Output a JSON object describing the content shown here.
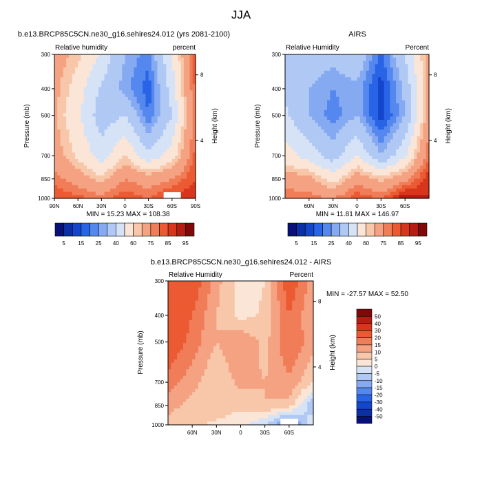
{
  "figure": {
    "title": "JJA"
  },
  "colors": {
    "palette": [
      "#08107a",
      "#0a2fa6",
      "#1446cc",
      "#2a64e6",
      "#5488ee",
      "#86aaf2",
      "#b0c8f4",
      "#d6e3f7",
      "#fbe5d6",
      "#f8c6a8",
      "#f5a283",
      "#f07d58",
      "#ec5a33",
      "#d8361c",
      "#b51c12",
      "#800808"
    ]
  },
  "panels": [
    {
      "id": "model",
      "title": "b.e13.BRCP85C5CN.ne30_g16.sehires24.012 (yrs 2081-2100)",
      "left_label": "Relative humidity",
      "right_label": "percent",
      "ylabel": "Pressure (mb)",
      "ylabel_right": "Height (km)",
      "ytick_labels": [
        "300",
        "400",
        "500",
        "700",
        "850",
        "1000"
      ],
      "height_tick_labels": [
        "8",
        "4"
      ],
      "xtick_labels": [
        "90N",
        "60N",
        "30N",
        "0",
        "30S",
        "60S",
        "90S"
      ],
      "min_max_text": "MIN =  15.23   MAX = 108.38"
    },
    {
      "id": "airs",
      "title": "AIRS",
      "left_label": "Relative Humidity",
      "right_label": "Percent",
      "ylabel": "Pressure (mb)",
      "ylabel_right": "Height (km)",
      "ytick_labels": [
        "300",
        "400",
        "500",
        "700",
        "850",
        "1000"
      ],
      "height_tick_labels": [
        "8",
        "4"
      ],
      "xtick_labels": [
        "60N",
        "30N",
        "0",
        "30S",
        "60S"
      ],
      "min_max_text": "MIN =  11.81   MAX = 146.97"
    },
    {
      "id": "diff",
      "title": "b.e13.BRCP85C5CN.ne30_g16.sehires24.012 - AIRS",
      "left_label": "Relative Humidity",
      "right_label": "Percent",
      "ylabel": "Pressure (mb)",
      "ylabel_right": "Height (km)",
      "ytick_labels": [
        "300",
        "400",
        "500",
        "700",
        "850",
        "1000"
      ],
      "height_tick_labels": [
        "8",
        "4"
      ],
      "xtick_labels": [
        "60N",
        "30N",
        "0",
        "30S",
        "60S"
      ],
      "min_max_text": "MIN = -27.57   MAX =  52.50"
    }
  ],
  "colorbars": {
    "abs_labels": [
      "5",
      "15",
      "25",
      "40",
      "60",
      "75",
      "85",
      "95"
    ],
    "diff_labels": [
      "50",
      "40",
      "30",
      "20",
      "15",
      "10",
      "5",
      "0",
      "-5",
      "-10",
      "-15",
      "-20",
      "-30",
      "-40",
      "-50"
    ]
  },
  "chart_data": [
    {
      "type": "heatmap",
      "title": "b.e13.BRCP85C5CN.ne30_g16.sehires24.012 (yrs 2081-2100)",
      "xlabel": "",
      "ylabel": "Pressure (mb)",
      "x": [
        90,
        60,
        30,
        0,
        -30,
        -60,
        -90
      ],
      "y": [
        300,
        400,
        500,
        700,
        850,
        1000
      ],
      "values": [
        [
          70,
          62,
          48,
          30,
          22,
          50,
          85
        ],
        [
          68,
          55,
          38,
          27,
          17,
          45,
          82
        ],
        [
          66,
          52,
          34,
          40,
          20,
          40,
          80
        ],
        [
          70,
          58,
          45,
          60,
          42,
          55,
          82
        ],
        [
          78,
          70,
          62,
          75,
          70,
          75,
          85
        ],
        [
          85,
          82,
          78,
          84,
          80,
          88,
          90
        ]
      ],
      "min": 15.23,
      "max": 108.38
    },
    {
      "type": "heatmap",
      "title": "AIRS",
      "xlabel": "",
      "ylabel": "Pressure (mb)",
      "x": [
        90,
        60,
        30,
        0,
        -30,
        -60,
        -90
      ],
      "y": [
        300,
        400,
        500,
        700,
        850,
        1000
      ],
      "values": [
        [
          38,
          35,
          33,
          38,
          18,
          40,
          70
        ],
        [
          38,
          30,
          25,
          28,
          12,
          32,
          68
        ],
        [
          42,
          30,
          22,
          30,
          12,
          30,
          70
        ],
        [
          55,
          45,
          35,
          50,
          30,
          48,
          80
        ],
        [
          70,
          68,
          55,
          72,
          62,
          72,
          88
        ],
        [
          80,
          78,
          75,
          84,
          80,
          95,
          90
        ]
      ],
      "min": 11.81,
      "max": 146.97
    },
    {
      "type": "heatmap",
      "title": "b.e13.BRCP85C5CN.ne30_g16.sehires24.012 - AIRS",
      "xlabel": "",
      "ylabel": "Pressure (mb)",
      "x": [
        90,
        60,
        30,
        0,
        -30,
        -60,
        -90
      ],
      "y": [
        300,
        400,
        500,
        700,
        850,
        1000
      ],
      "values": [
        [
          30,
          25,
          12,
          2,
          5,
          25,
          12
        ],
        [
          28,
          20,
          10,
          3,
          6,
          20,
          10
        ],
        [
          25,
          18,
          10,
          15,
          8,
          20,
          12
        ],
        [
          18,
          12,
          5,
          12,
          10,
          14,
          5
        ],
        [
          12,
          8,
          8,
          6,
          10,
          8,
          -10
        ],
        [
          8,
          6,
          4,
          2,
          -5,
          -20,
          0
        ]
      ],
      "min": -27.57,
      "max": 52.5
    }
  ]
}
